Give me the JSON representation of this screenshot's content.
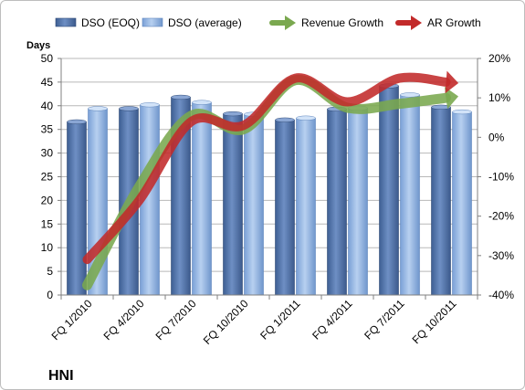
{
  "chart_data": {
    "type": "bar",
    "title": "",
    "ylabel": "Days",
    "ticker": "HNI",
    "categories": [
      "FQ 1/2010",
      "FQ 4/2010",
      "FQ 7/2010",
      "FQ 10/2010",
      "FQ 1/2011",
      "FQ 4/2011",
      "FQ 7/2011",
      "FQ 10/2011"
    ],
    "ylim": [
      0,
      50
    ],
    "y_ticks": [
      0,
      5,
      10,
      15,
      20,
      25,
      30,
      35,
      40,
      45,
      50
    ],
    "y2lim": [
      -40,
      20
    ],
    "y2_ticks": [
      -40,
      -30,
      -20,
      -10,
      0,
      10,
      20
    ],
    "y2_tick_labels": [
      "-40%",
      "-30%",
      "-20%",
      "-10%",
      "0%",
      "10%",
      "20%"
    ],
    "grid": true,
    "legend_position": "top",
    "series": [
      {
        "name": "DSO (EOQ)",
        "kind": "bar",
        "axis": "left",
        "color": "#4f6fa3",
        "values": [
          36.6,
          39.4,
          41.8,
          38.3,
          37.0,
          39.3,
          44.2,
          39.7
        ]
      },
      {
        "name": "DSO (average)",
        "kind": "bar",
        "axis": "left",
        "color": "#8fb2e0",
        "values": [
          39.4,
          40.2,
          40.7,
          38.2,
          37.4,
          39.5,
          42.3,
          38.7
        ]
      },
      {
        "name": "Revenue Growth",
        "kind": "arrow-line",
        "axis": "right",
        "color": "#7aa84f",
        "values": [
          -37.5,
          -12.5,
          5.5,
          2.0,
          14.5,
          7.5,
          8.5,
          10.0
        ]
      },
      {
        "name": "AR Growth",
        "kind": "arrow-line",
        "axis": "right",
        "color": "#c22a2a",
        "values": [
          -31.0,
          -16.0,
          4.0,
          3.0,
          15.0,
          9.0,
          15.0,
          14.0
        ]
      }
    ]
  }
}
